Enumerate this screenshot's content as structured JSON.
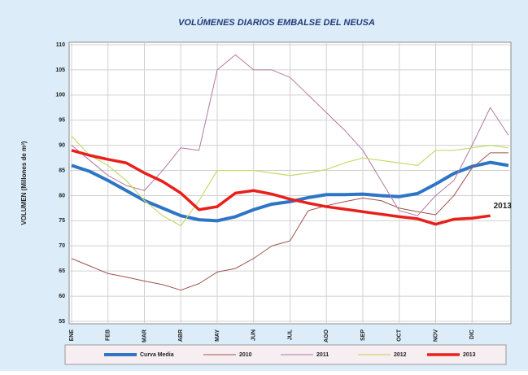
{
  "chart_data": {
    "type": "line",
    "title": "VOLÚMENES DIARIOS EMBALSE DEL NEUSA",
    "y_label": "VOLUMEN (Millones de m³)",
    "annotation": "2013",
    "x": [
      0,
      0.5,
      1,
      1.5,
      2,
      2.5,
      3,
      3.5,
      4,
      4.5,
      5,
      5.5,
      6,
      6.5,
      7,
      7.5,
      8,
      8.5,
      9,
      9.5,
      10,
      10.5,
      11,
      11.5,
      12
    ],
    "xlim": [
      0,
      12
    ],
    "xticks": [
      {
        "value": 0,
        "label": "ENE"
      },
      {
        "value": 1,
        "label": "FEB"
      },
      {
        "value": 2,
        "label": "MAR"
      },
      {
        "value": 3,
        "label": "ABR"
      },
      {
        "value": 4,
        "label": "MAY"
      },
      {
        "value": 5,
        "label": "JUN"
      },
      {
        "value": 6,
        "label": "JUL"
      },
      {
        "value": 7,
        "label": "AGO"
      },
      {
        "value": 8,
        "label": "SEP"
      },
      {
        "value": 9,
        "label": "OCT"
      },
      {
        "value": 10,
        "label": "NOV"
      },
      {
        "value": 11,
        "label": "DIC"
      }
    ],
    "ylim": [
      55,
      110
    ],
    "yticks": [
      55,
      60,
      65,
      70,
      75,
      80,
      85,
      90,
      95,
      100,
      105,
      110
    ],
    "grid": true,
    "legend": "bottom",
    "series": [
      {
        "name": "Curva Media",
        "color": "#2e75c6",
        "width": 4,
        "values": [
          86,
          84.8,
          83,
          81,
          79,
          77.5,
          76,
          75.2,
          75,
          75.8,
          77.2,
          78.3,
          78.8,
          79.6,
          80.2,
          80.2,
          80.3,
          80,
          79.8,
          80.4,
          82.3,
          84.4,
          85.8,
          86.6,
          86
        ]
      },
      {
        "name": "2010",
        "color": "#a0524d",
        "width": 1,
        "values": [
          67.5,
          66,
          64.5,
          63.8,
          63,
          62.3,
          61.2,
          62.5,
          64.8,
          65.5,
          67.5,
          70,
          71,
          77,
          78,
          78.8,
          79.5,
          79,
          77.5,
          76.8,
          76.2,
          80,
          85.5,
          88.5,
          88.5
        ]
      },
      {
        "name": "2011",
        "color": "#b07aa1",
        "width": 1,
        "values": [
          90,
          87,
          84,
          82,
          81,
          85,
          89.5,
          89,
          105,
          108,
          105,
          105,
          103.5,
          100,
          96.5,
          93,
          89,
          83,
          77,
          76,
          80,
          83,
          90,
          97.5,
          92
        ]
      },
      {
        "name": "2012",
        "color": "#c8d96a",
        "width": 1.2,
        "values": [
          91.8,
          88,
          86,
          83,
          79,
          76,
          74,
          79,
          85,
          85,
          85,
          84.5,
          84,
          84.5,
          85.2,
          86.5,
          87.5,
          87,
          86.5,
          86,
          89,
          89,
          89.5,
          90,
          89.5
        ]
      },
      {
        "name": "2013",
        "color": "#e8201c",
        "width": 3.5,
        "values": [
          89,
          88,
          87.2,
          86.5,
          84.5,
          82.8,
          80.5,
          77.2,
          77.8,
          80.5,
          81,
          80.3,
          79.3,
          78.5,
          77.8,
          77.3,
          76.8,
          76.3,
          75.8,
          75.4,
          74.3,
          75.3,
          75.5,
          76,
          null
        ]
      }
    ]
  }
}
